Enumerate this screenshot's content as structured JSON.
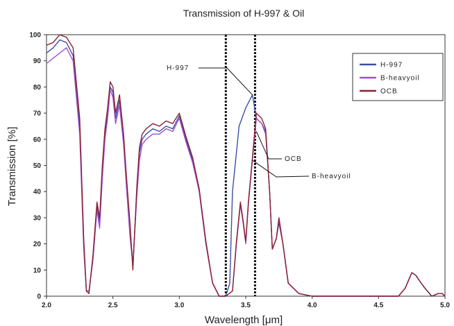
{
  "chart_data": {
    "type": "line",
    "title": "Transmission of H-997 & Oil",
    "xlabel": "Wavelength [μm]",
    "ylabel": "Transmission [%]",
    "xlim": [
      2.0,
      5.0
    ],
    "ylim": [
      0,
      100
    ],
    "x_ticks": [
      "2.0",
      "2.5",
      "3.0",
      "3.5",
      "4.0",
      "4.5",
      "5.0"
    ],
    "y_ticks": [
      "0",
      "10",
      "20",
      "30",
      "40",
      "50",
      "60",
      "70",
      "80",
      "90",
      "100"
    ],
    "grid": false,
    "legend_position": "top-right",
    "reference_lines_x": [
      3.35,
      3.57
    ],
    "series": [
      {
        "name": "H-997",
        "color": "#3a4fa8",
        "points": [
          [
            2.0,
            93
          ],
          [
            2.05,
            95
          ],
          [
            2.1,
            98
          ],
          [
            2.15,
            97
          ],
          [
            2.2,
            92
          ],
          [
            2.25,
            65
          ],
          [
            2.28,
            20
          ],
          [
            2.3,
            2
          ],
          [
            2.32,
            2
          ],
          [
            2.35,
            15
          ],
          [
            2.38,
            35
          ],
          [
            2.4,
            28
          ],
          [
            2.42,
            48
          ],
          [
            2.44,
            62
          ],
          [
            2.46,
            70
          ],
          [
            2.48,
            80
          ],
          [
            2.5,
            78
          ],
          [
            2.52,
            68
          ],
          [
            2.55,
            75
          ],
          [
            2.58,
            60
          ],
          [
            2.6,
            45
          ],
          [
            2.63,
            25
          ],
          [
            2.65,
            12
          ],
          [
            2.68,
            40
          ],
          [
            2.7,
            55
          ],
          [
            2.72,
            60
          ],
          [
            2.75,
            62
          ],
          [
            2.8,
            64
          ],
          [
            2.85,
            63
          ],
          [
            2.9,
            65
          ],
          [
            2.95,
            64
          ],
          [
            3.0,
            69
          ],
          [
            3.05,
            60
          ],
          [
            3.1,
            52
          ],
          [
            3.15,
            40
          ],
          [
            3.2,
            20
          ],
          [
            3.25,
            5
          ],
          [
            3.3,
            0
          ],
          [
            3.35,
            0
          ],
          [
            3.38,
            5
          ],
          [
            3.4,
            40
          ],
          [
            3.45,
            65
          ],
          [
            3.5,
            72
          ],
          [
            3.55,
            77
          ],
          [
            3.58,
            68
          ],
          [
            3.62,
            66
          ],
          [
            3.65,
            63
          ],
          [
            3.68,
            40
          ],
          [
            3.7,
            18
          ],
          [
            3.73,
            22
          ],
          [
            3.75,
            28
          ],
          [
            3.78,
            20
          ],
          [
            3.82,
            5
          ],
          [
            3.9,
            1
          ],
          [
            4.0,
            0
          ],
          [
            4.5,
            0
          ],
          [
            4.65,
            0
          ],
          [
            4.7,
            3
          ],
          [
            4.75,
            9
          ],
          [
            4.78,
            8
          ],
          [
            4.82,
            5
          ],
          [
            4.85,
            3
          ],
          [
            4.9,
            0
          ],
          [
            4.95,
            1
          ],
          [
            4.98,
            1
          ],
          [
            5.0,
            0
          ]
        ]
      },
      {
        "name": "B-heavyoil",
        "color": "#a050c8",
        "points": [
          [
            2.0,
            89
          ],
          [
            2.05,
            91
          ],
          [
            2.1,
            93
          ],
          [
            2.15,
            95
          ],
          [
            2.2,
            90
          ],
          [
            2.25,
            62
          ],
          [
            2.28,
            18
          ],
          [
            2.3,
            2
          ],
          [
            2.32,
            2
          ],
          [
            2.35,
            14
          ],
          [
            2.38,
            33
          ],
          [
            2.4,
            26
          ],
          [
            2.42,
            45
          ],
          [
            2.44,
            60
          ],
          [
            2.46,
            68
          ],
          [
            2.48,
            79
          ],
          [
            2.5,
            76
          ],
          [
            2.52,
            66
          ],
          [
            2.55,
            73
          ],
          [
            2.58,
            58
          ],
          [
            2.6,
            43
          ],
          [
            2.63,
            22
          ],
          [
            2.65,
            12
          ],
          [
            2.68,
            38
          ],
          [
            2.7,
            52
          ],
          [
            2.72,
            58
          ],
          [
            2.75,
            60
          ],
          [
            2.8,
            62
          ],
          [
            2.85,
            62
          ],
          [
            2.9,
            64
          ],
          [
            2.95,
            63
          ],
          [
            3.0,
            68
          ],
          [
            3.05,
            59
          ],
          [
            3.1,
            51
          ],
          [
            3.15,
            40
          ],
          [
            3.2,
            20
          ],
          [
            3.25,
            5
          ],
          [
            3.3,
            0
          ],
          [
            3.35,
            0
          ],
          [
            3.4,
            2
          ],
          [
            3.43,
            20
          ],
          [
            3.46,
            35
          ],
          [
            3.48,
            28
          ],
          [
            3.5,
            20
          ],
          [
            3.52,
            35
          ],
          [
            3.55,
            52
          ],
          [
            3.58,
            68
          ],
          [
            3.62,
            66
          ],
          [
            3.65,
            62
          ],
          [
            3.68,
            40
          ],
          [
            3.7,
            18
          ],
          [
            3.73,
            22
          ],
          [
            3.75,
            29
          ],
          [
            3.78,
            20
          ],
          [
            3.82,
            5
          ],
          [
            3.9,
            1
          ],
          [
            4.0,
            0
          ],
          [
            4.5,
            0
          ],
          [
            4.65,
            0
          ],
          [
            4.7,
            3
          ],
          [
            4.75,
            9
          ],
          [
            4.78,
            8
          ],
          [
            4.82,
            5
          ],
          [
            4.85,
            3
          ],
          [
            4.9,
            0
          ],
          [
            4.95,
            1
          ],
          [
            4.98,
            1
          ],
          [
            5.0,
            0
          ]
        ]
      },
      {
        "name": "OCB",
        "color": "#8b2030",
        "points": [
          [
            2.0,
            96
          ],
          [
            2.05,
            97
          ],
          [
            2.1,
            100
          ],
          [
            2.15,
            99
          ],
          [
            2.2,
            95
          ],
          [
            2.25,
            68
          ],
          [
            2.28,
            22
          ],
          [
            2.3,
            2
          ],
          [
            2.32,
            1
          ],
          [
            2.35,
            16
          ],
          [
            2.38,
            36
          ],
          [
            2.4,
            30
          ],
          [
            2.42,
            50
          ],
          [
            2.44,
            64
          ],
          [
            2.46,
            72
          ],
          [
            2.48,
            82
          ],
          [
            2.5,
            80
          ],
          [
            2.52,
            70
          ],
          [
            2.55,
            77
          ],
          [
            2.58,
            62
          ],
          [
            2.6,
            47
          ],
          [
            2.63,
            27
          ],
          [
            2.65,
            10
          ],
          [
            2.68,
            42
          ],
          [
            2.7,
            57
          ],
          [
            2.72,
            62
          ],
          [
            2.75,
            64
          ],
          [
            2.8,
            66
          ],
          [
            2.85,
            65
          ],
          [
            2.9,
            67
          ],
          [
            2.95,
            66
          ],
          [
            3.0,
            70
          ],
          [
            3.05,
            61
          ],
          [
            3.1,
            53
          ],
          [
            3.15,
            41
          ],
          [
            3.2,
            21
          ],
          [
            3.25,
            5
          ],
          [
            3.3,
            0
          ],
          [
            3.35,
            0
          ],
          [
            3.4,
            2
          ],
          [
            3.43,
            21
          ],
          [
            3.46,
            36
          ],
          [
            3.48,
            29
          ],
          [
            3.5,
            21
          ],
          [
            3.52,
            36
          ],
          [
            3.55,
            53
          ],
          [
            3.58,
            70
          ],
          [
            3.62,
            68
          ],
          [
            3.65,
            64
          ],
          [
            3.68,
            40
          ],
          [
            3.7,
            18
          ],
          [
            3.73,
            22
          ],
          [
            3.75,
            30
          ],
          [
            3.78,
            20
          ],
          [
            3.82,
            5
          ],
          [
            3.9,
            1
          ],
          [
            4.0,
            0
          ],
          [
            4.5,
            0
          ],
          [
            4.65,
            0
          ],
          [
            4.7,
            3
          ],
          [
            4.75,
            9
          ],
          [
            4.78,
            8
          ],
          [
            4.82,
            5
          ],
          [
            4.85,
            3
          ],
          [
            4.9,
            0
          ],
          [
            4.95,
            1
          ],
          [
            4.98,
            1
          ],
          [
            5.0,
            0
          ]
        ]
      }
    ],
    "annotations": [
      {
        "text": "H-997",
        "target": [
          3.55,
          77
        ]
      },
      {
        "text": "OCB",
        "target": [
          3.58,
          63
        ]
      },
      {
        "text": "B-heavyoil",
        "target": [
          3.55,
          52
        ]
      }
    ]
  }
}
